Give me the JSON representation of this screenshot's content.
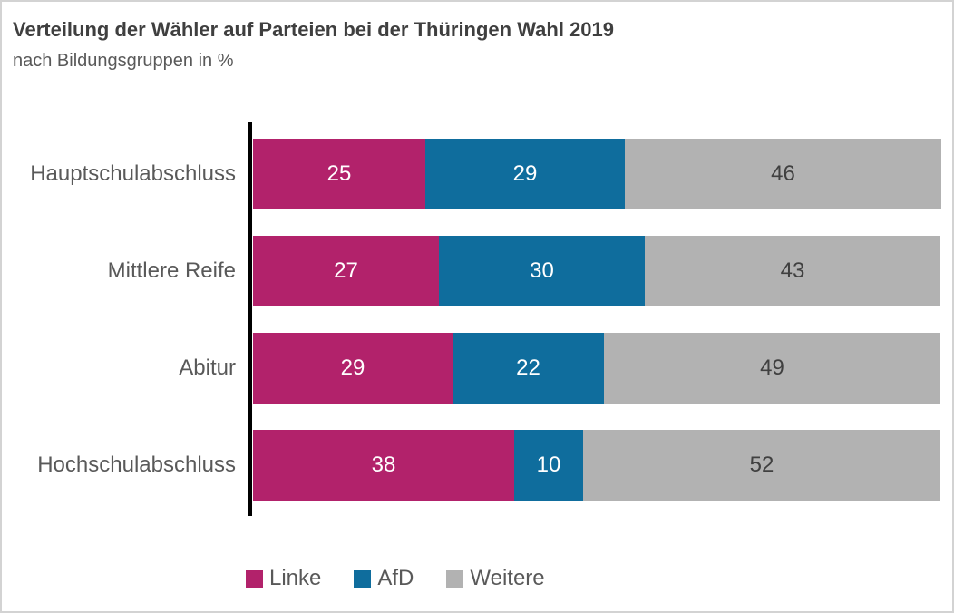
{
  "header": {
    "title": "Verteilung der Wähler auf Parteien bei der Thüringen Wahl 2019",
    "subtitle": "nach Bildungsgruppen in %"
  },
  "chart_data": {
    "type": "bar",
    "orientation": "horizontal",
    "stacked": true,
    "title": "Verteilung der Wähler auf Parteien bei der Thüringen Wahl 2019",
    "subtitle": "nach Bildungsgruppen in %",
    "unit": "%",
    "categories": [
      "Hauptschulabschluss",
      "Mittlere Reife",
      "Abitur",
      "Hochschulabschluss"
    ],
    "series": [
      {
        "name": "Linke",
        "color": "#B2226B",
        "label_color": "#FFFFFF",
        "values": [
          25,
          27,
          29,
          38
        ]
      },
      {
        "name": "AfD",
        "color": "#0F6D9D",
        "label_color": "#FFFFFF",
        "values": [
          29,
          30,
          22,
          10
        ]
      },
      {
        "name": "Weitere",
        "color": "#B2B2B2",
        "label_color": "#404040",
        "values": [
          46,
          43,
          49,
          52
        ]
      }
    ],
    "xlim": [
      0,
      100
    ],
    "grid": false,
    "legend_position": "bottom",
    "axis_color": "#000000",
    "frame_border_color": "#D3D3D3"
  }
}
